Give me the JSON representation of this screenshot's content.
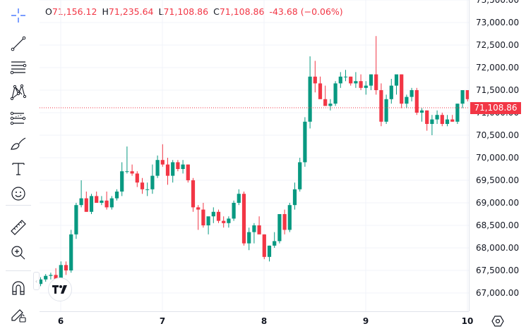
{
  "legend": {
    "open_key": "O",
    "open_val": "71,156.12",
    "high_key": "H",
    "high_val": "71,235.64",
    "low_key": "L",
    "low_val": "71,108.86",
    "close_key": "C",
    "close_val": "71,108.86",
    "change": "-43.68 (−0.06%)"
  },
  "colors": {
    "up": "#089981",
    "down": "#f23645",
    "grid": "#f0f3fa",
    "axis_text": "#131722",
    "tool_icon": "#131722",
    "crosshair_icon": "#2962ff"
  },
  "toolbar": {
    "tools": [
      {
        "name": "crosshair-icon"
      },
      {
        "name": "trend-line-icon"
      },
      {
        "name": "fib-retracement-icon"
      },
      {
        "name": "xabcd-pattern-icon"
      },
      {
        "name": "forecast-icon"
      },
      {
        "name": "brush-icon"
      },
      {
        "name": "text-icon"
      },
      {
        "name": "emoji-icon"
      },
      {
        "name": "ruler-icon"
      },
      {
        "name": "zoom-in-icon"
      },
      {
        "name": "magnet-icon"
      },
      {
        "name": "lock-drawings-icon"
      }
    ]
  },
  "last_price": "71,108.86",
  "chart_data": {
    "type": "candlestick",
    "title": "",
    "xlabel": "",
    "ylabel": "",
    "ylim": [
      66600,
      73500
    ],
    "price_ticks": [
      "73,500.00",
      "73,000.00",
      "72,500.00",
      "72,000.00",
      "71,500.00",
      "71,000.00",
      "70,500.00",
      "70,000.00",
      "69,500.00",
      "69,000.00",
      "68,500.00",
      "68,000.00",
      "67,500.00",
      "67,000.00"
    ],
    "price_tick_values": [
      73500,
      73000,
      72500,
      72000,
      71500,
      71000,
      70500,
      70000,
      69500,
      69000,
      68500,
      68000,
      67500,
      67000
    ],
    "time_ticks": [
      {
        "label": "6",
        "x": 86
      },
      {
        "label": "7",
        "x": 230
      },
      {
        "label": "8",
        "x": 374
      },
      {
        "label": "9",
        "x": 518
      },
      {
        "label": "10",
        "x": 662
      }
    ],
    "last_price": 71108.86,
    "candle_start_x": 57.5,
    "candle_spacing": 7.2,
    "candles": [
      [
        67200,
        67350,
        67150,
        67300
      ],
      [
        67300,
        67420,
        67250,
        67380
      ],
      [
        67380,
        67450,
        67300,
        67400
      ],
      [
        67400,
        67550,
        67280,
        67300
      ],
      [
        67300,
        67700,
        67300,
        67620
      ],
      [
        67620,
        67700,
        67400,
        67500
      ],
      [
        67500,
        68400,
        67450,
        68300
      ],
      [
        68300,
        69000,
        68200,
        68950
      ],
      [
        68950,
        69500,
        68900,
        69100
      ],
      [
        69100,
        69250,
        68800,
        68800
      ],
      [
        68800,
        69200,
        68750,
        69150
      ],
      [
        69150,
        69250,
        69050,
        69000
      ],
      [
        69000,
        69150,
        68950,
        69050
      ],
      [
        69050,
        69250,
        68850,
        68900
      ],
      [
        68900,
        69150,
        68850,
        69100
      ],
      [
        69100,
        69300,
        69050,
        69250
      ],
      [
        69250,
        69900,
        69150,
        69700
      ],
      [
        69700,
        70250,
        69650,
        69700
      ],
      [
        69700,
        69850,
        69600,
        69650
      ],
      [
        69650,
        69700,
        69350,
        69450
      ],
      [
        69450,
        69550,
        69200,
        69300
      ],
      [
        69300,
        69450,
        69150,
        69300
      ],
      [
        69300,
        69850,
        69200,
        69600
      ],
      [
        69600,
        70050,
        69550,
        69950
      ],
      [
        69950,
        70300,
        69800,
        69850
      ],
      [
        69850,
        70000,
        69400,
        69600
      ],
      [
        69600,
        69950,
        69450,
        69900
      ],
      [
        69900,
        69950,
        69700,
        69750
      ],
      [
        69750,
        69950,
        69650,
        69850
      ],
      [
        69850,
        69850,
        69450,
        69500
      ],
      [
        69500,
        69550,
        68800,
        68900
      ],
      [
        68900,
        68950,
        68400,
        68850
      ],
      [
        68850,
        69000,
        68450,
        68500
      ],
      [
        68500,
        68600,
        68300,
        68700
      ],
      [
        68700,
        68900,
        68550,
        68800
      ],
      [
        68800,
        68850,
        68550,
        68600
      ],
      [
        68600,
        68700,
        68450,
        68550
      ],
      [
        68550,
        68700,
        68450,
        68650
      ],
      [
        68650,
        69050,
        68600,
        69000
      ],
      [
        69000,
        69300,
        68950,
        69200
      ],
      [
        69200,
        69250,
        68050,
        68100
      ],
      [
        68100,
        68450,
        67950,
        68350
      ],
      [
        68350,
        68550,
        68100,
        68500
      ],
      [
        68500,
        68700,
        68350,
        68300
      ],
      [
        68300,
        68300,
        67750,
        67800
      ],
      [
        67800,
        68050,
        67700,
        68050
      ],
      [
        68050,
        68350,
        68000,
        68150
      ],
      [
        68150,
        68550,
        68100,
        68750
      ],
      [
        68750,
        68850,
        68300,
        68400
      ],
      [
        68400,
        69000,
        68350,
        68950
      ],
      [
        68950,
        69450,
        68850,
        69300
      ],
      [
        69300,
        70000,
        69250,
        69900
      ],
      [
        69900,
        70900,
        69800,
        70800
      ],
      [
        70800,
        72250,
        70650,
        71800
      ],
      [
        71800,
        72150,
        71450,
        71650
      ],
      [
        71650,
        71800,
        71350,
        71300
      ],
      [
        71300,
        71600,
        71150,
        71150
      ],
      [
        71150,
        71300,
        71050,
        71200
      ],
      [
        71200,
        71700,
        71150,
        71650
      ],
      [
        71650,
        71900,
        71550,
        71800
      ],
      [
        71800,
        71950,
        71700,
        71800
      ],
      [
        71800,
        71800,
        71600,
        71650
      ],
      [
        71650,
        71900,
        71550,
        71700
      ],
      [
        71700,
        71850,
        71500,
        71550
      ],
      [
        71550,
        71700,
        71400,
        71600
      ],
      [
        71600,
        71850,
        71500,
        71850
      ],
      [
        71850,
        72700,
        71400,
        71500
      ],
      [
        71500,
        71650,
        70700,
        70800
      ],
      [
        70800,
        71400,
        70750,
        71300
      ],
      [
        71300,
        71750,
        71200,
        71600
      ],
      [
        71600,
        71800,
        71400,
        71850
      ],
      [
        71850,
        71850,
        71100,
        71200
      ],
      [
        71200,
        71400,
        71100,
        71350
      ],
      [
        71350,
        71550,
        71250,
        71500
      ],
      [
        71500,
        71550,
        70950,
        71000
      ],
      [
        71000,
        71100,
        70800,
        71050
      ],
      [
        71050,
        71050,
        70600,
        70750
      ],
      [
        70750,
        70950,
        70500,
        70850
      ],
      [
        70850,
        71050,
        70750,
        70950
      ],
      [
        70950,
        71000,
        70700,
        70750
      ],
      [
        70750,
        70950,
        70700,
        70850
      ],
      [
        70850,
        70950,
        70800,
        70800
      ],
      [
        70800,
        71200,
        70750,
        71200
      ],
      [
        71200,
        71450,
        71100,
        71500
      ],
      [
        71500,
        71500,
        71250,
        71300
      ],
      [
        71300,
        71300,
        71100,
        71156
      ],
      [
        71156,
        71236,
        71109,
        71109
      ]
    ]
  }
}
